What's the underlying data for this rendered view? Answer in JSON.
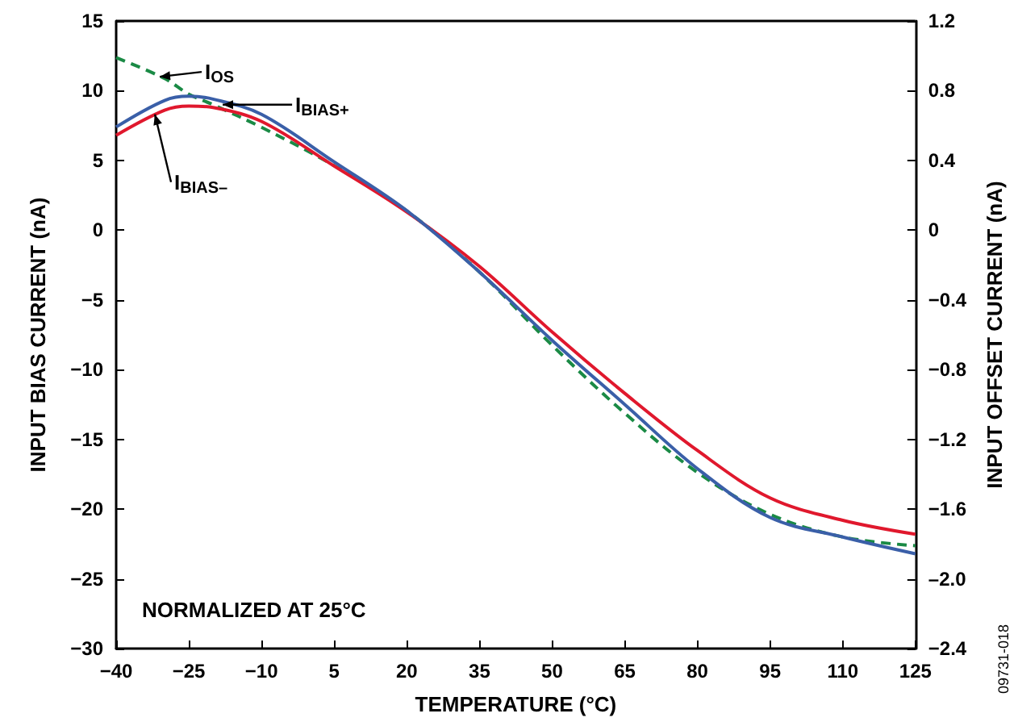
{
  "chart_data": {
    "type": "line",
    "xlabel": "TEMPERATURE (°C)",
    "ylabel": "INPUT BIAS CURRENT (nA)",
    "y2label": "INPUT OFFSET CURRENT (nA)",
    "x": [
      -40,
      -30,
      -25,
      -20,
      -10,
      5,
      20,
      35,
      50,
      65,
      80,
      95,
      110,
      125
    ],
    "series": [
      {
        "color": "#3a5fa8",
        "values": [
          7.4,
          9.3,
          9.6,
          9.4,
          8.3,
          4.9,
          1.4,
          -3.0,
          -7.9,
          -12.5,
          -17.1,
          -20.6,
          -22.0,
          -23.2
        ]
      },
      {
        "color": "#e0182d",
        "values": [
          6.8,
          8.6,
          8.9,
          8.8,
          7.8,
          4.6,
          1.3,
          -2.6,
          -7.3,
          -11.7,
          -15.8,
          -19.2,
          -20.8,
          -21.8
        ]
      },
      {
        "color": "#1a8a45",
        "axis": "y2",
        "line_style": "dashed",
        "values": [
          0.99,
          0.87,
          0.78,
          0.72,
          0.59,
          0.37,
          0.11,
          -0.24,
          -0.66,
          -1.05,
          -1.39,
          -1.63,
          -1.76,
          -1.81
        ]
      }
    ],
    "xlim": [
      -40,
      125
    ],
    "xticks": [
      -40,
      -25,
      -10,
      5,
      20,
      35,
      50,
      65,
      80,
      95,
      110,
      125
    ],
    "ylim": [
      -30,
      15
    ],
    "yticks": [
      -30,
      -25,
      -20,
      -15,
      -10,
      -5,
      0,
      5,
      10,
      15
    ],
    "y2lim": [
      -2.4,
      1.2
    ],
    "y2ticks": [
      -2.4,
      {
        "value": -2,
        "label": "–2.0"
      },
      -1.6,
      -1.2,
      -0.8,
      -0.4,
      0,
      0.4,
      0.8,
      1.2
    ],
    "annotations": [
      {
        "text": "I$_{OS}$",
        "x": -31,
        "y": 11.0
      },
      {
        "text": "I$_{BIAS+}$",
        "x": -18,
        "y": 9.0
      },
      {
        "text": "I$_{BIAS–}$",
        "x": -32,
        "y": 8.3
      },
      "NORMALIZED AT 25°C",
      "09731-018"
    ],
    "grid": false,
    "marker": "none",
    "line_style": "solid"
  }
}
